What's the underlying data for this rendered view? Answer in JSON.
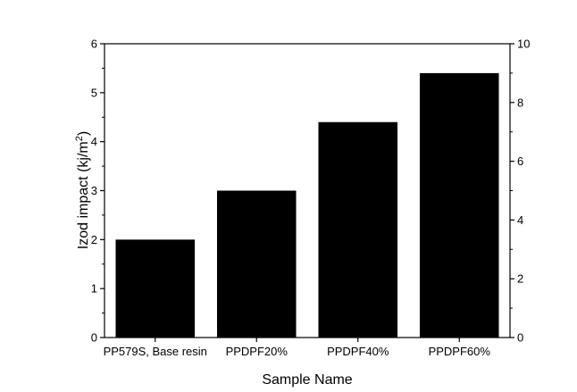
{
  "chart_data": {
    "type": "bar",
    "title": "",
    "xlabel": "Sample Name",
    "ylabel_prefix": "Izod impact (kj/m",
    "ylabel_sup": "2",
    "ylabel_suffix": ")",
    "y2label": "",
    "categories": [
      "PP579S, Base resin",
      "PPDPF20%",
      "PPDPF40%",
      "PPDPF60%"
    ],
    "values": [
      2.0,
      3.0,
      4.4,
      5.4
    ],
    "ylim": [
      0,
      6
    ],
    "yticks": [
      "0",
      "1",
      "2",
      "3",
      "4",
      "5",
      "6"
    ],
    "y2lim": [
      0,
      10
    ],
    "y2ticks": [
      "0",
      "2",
      "4",
      "6",
      "8",
      "10"
    ],
    "bar_color": "#000000",
    "axis_color": "#000000",
    "grid": false,
    "legend": "none"
  }
}
